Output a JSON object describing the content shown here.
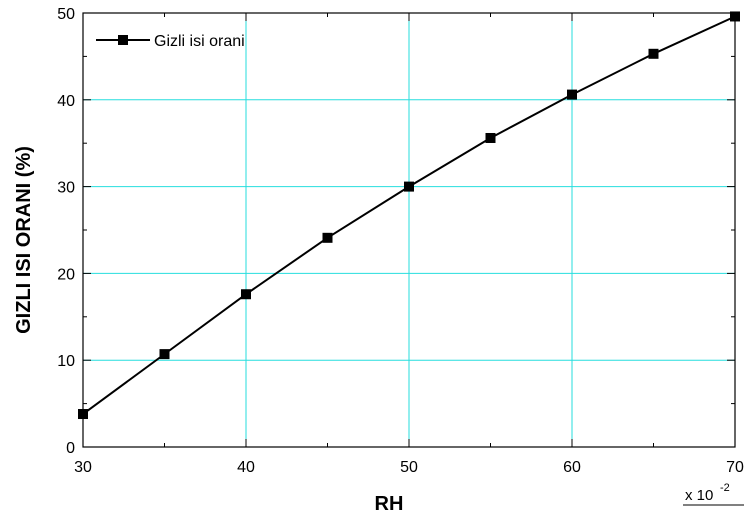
{
  "chart_data": {
    "type": "line",
    "title": "",
    "xlabel": "RH",
    "ylabel": "GIZLI ISI ORANI (%)",
    "x_multiplier_label": {
      "prefix": "x 10",
      "exponent": "-2"
    },
    "xlim": [
      30,
      70
    ],
    "ylim": [
      0,
      50
    ],
    "x_major_ticks": [
      30,
      40,
      50,
      60,
      70
    ],
    "y_major_ticks": [
      0,
      10,
      20,
      30,
      40,
      50
    ],
    "x_tick_labels": [
      "30",
      "40",
      "50",
      "60",
      "70"
    ],
    "y_tick_labels": [
      "0",
      "10",
      "20",
      "30",
      "40",
      "50"
    ],
    "grid": true,
    "legend_position": "top-left",
    "series": [
      {
        "name": "Gizli isi orani",
        "marker": "square",
        "color": "#000000",
        "x": [
          30,
          35,
          40,
          45,
          50,
          55,
          60,
          65,
          70
        ],
        "y": [
          3.8,
          10.7,
          17.6,
          24.1,
          30.0,
          35.6,
          40.6,
          45.3,
          49.6
        ]
      }
    ]
  },
  "colors": {
    "grid": "#26dede",
    "axis": "#000000",
    "line": "#000000"
  }
}
